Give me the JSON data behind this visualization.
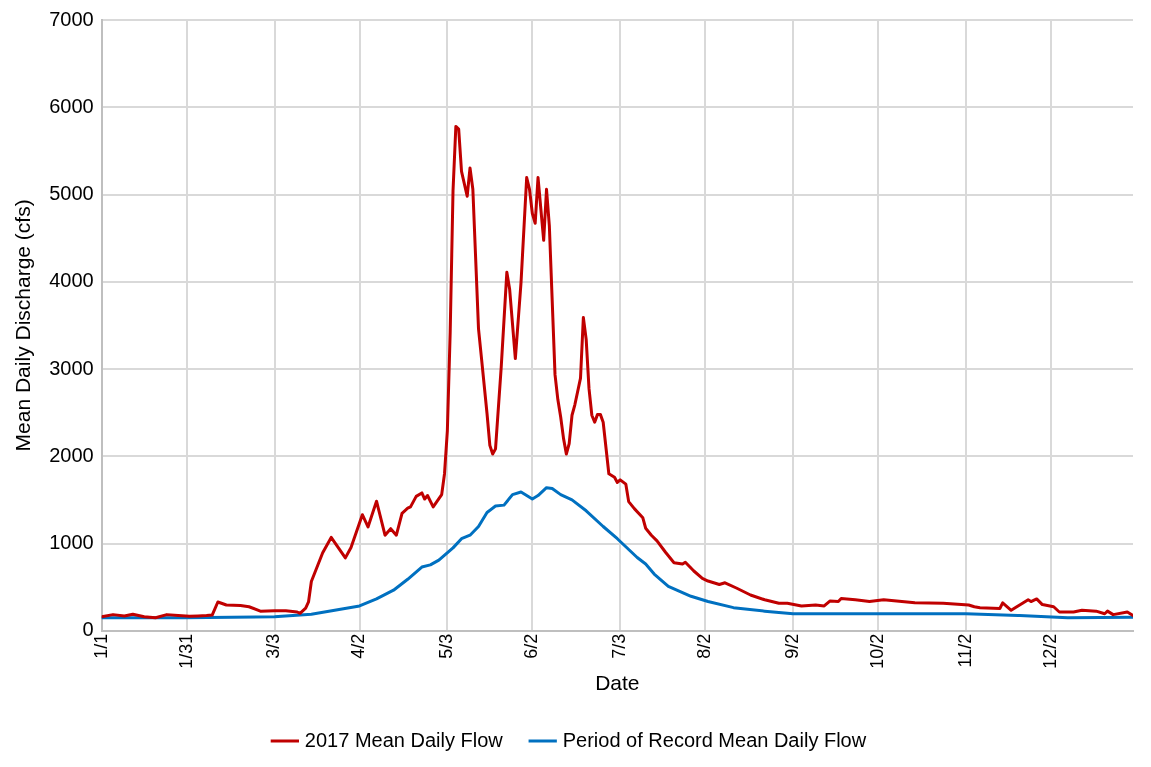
{
  "chart_data": {
    "type": "line",
    "xlabel": "Date",
    "ylabel": "Mean Daily Discharge (cfs)",
    "xlim": [
      "--01-01",
      "--12-31"
    ],
    "xticks": [
      {
        "value": "--01-01",
        "label": "1/1"
      },
      {
        "value": "--01-31",
        "label": "1/31"
      },
      {
        "value": "--03-03",
        "label": "3/3"
      },
      {
        "value": "--04-02",
        "label": "4/2"
      },
      {
        "value": "--05-03",
        "label": "5/3"
      },
      {
        "value": "--06-02",
        "label": "6/2"
      },
      {
        "value": "--07-03",
        "label": "7/3"
      },
      {
        "value": "--08-02",
        "label": "8/2"
      },
      {
        "value": "--09-02",
        "label": "9/2"
      },
      {
        "value": "--10-02",
        "label": "10/2"
      },
      {
        "value": "--11-02",
        "label": "11/2"
      },
      {
        "value": "--12-02",
        "label": "12/2"
      }
    ],
    "ylim": [
      0,
      7000
    ],
    "yticks": [
      0,
      1000,
      2000,
      3000,
      4000,
      5000,
      6000,
      7000
    ],
    "grid": true,
    "legend": "bottom",
    "series": [
      {
        "name": "2017 Mean Daily Flow",
        "color": "#c00000",
        "x": [
          "--01-01",
          "--01-05",
          "--01-09",
          "--01-12",
          "--01-16",
          "--01-20",
          "--01-24",
          "--01-28",
          "--02-01",
          "--02-04",
          "--02-07",
          "--02-09",
          "--02-11",
          "--02-14",
          "--02-19",
          "--02-22",
          "--02-26",
          "--03-03",
          "--03-07",
          "--03-11",
          "--03-12",
          "--03-14",
          "--03-15",
          "--03-16",
          "--03-20",
          "--03-23",
          "--03-28",
          "--03-30",
          "--04-03",
          "--04-05",
          "--04-08",
          "--04-11",
          "--04-13",
          "--04-15",
          "--04-17",
          "--04-19",
          "--04-20",
          "--04-22",
          "--04-24",
          "--04-25",
          "--04-26",
          "--04-28",
          "--05-01",
          "--05-02",
          "--05-03",
          "--05-04",
          "--05-05",
          "--05-06",
          "--05-07",
          "--05-08",
          "--05-10",
          "--05-11",
          "--05-12",
          "--05-14",
          "--05-15",
          "--05-17",
          "--05-18",
          "--05-19",
          "--05-20",
          "--05-22",
          "--05-24",
          "--05-25",
          "--05-27",
          "--05-29",
          "--05-31",
          "--06-01",
          "--06-02",
          "--06-03",
          "--06-04",
          "--06-06",
          "--06-07",
          "--06-08",
          "--06-10",
          "--06-11",
          "--06-12",
          "--06-13",
          "--06-14",
          "--06-15",
          "--06-16",
          "--06-17",
          "--06-19",
          "--06-20",
          "--06-21",
          "--06-22",
          "--06-23",
          "--06-24",
          "--06-25",
          "--06-26",
          "--06-27",
          "--06-29",
          "--07-01",
          "--07-02",
          "--07-03",
          "--07-05",
          "--07-06",
          "--07-08",
          "--07-11",
          "--07-12",
          "--07-14",
          "--07-16",
          "--07-19",
          "--07-22",
          "--07-25",
          "--07-26",
          "--07-29",
          "--08-01",
          "--08-03",
          "--08-07",
          "--08-09",
          "--08-13",
          "--08-18",
          "--08-23",
          "--08-28",
          "--08-31",
          "--09-05",
          "--09-10",
          "--09-13",
          "--09-15",
          "--09-18",
          "--09-19",
          "--09-24",
          "--09-29",
          "--10-04",
          "--10-15",
          "--10-25",
          "--11-03",
          "--11-05",
          "--11-07",
          "--11-14",
          "--11-15",
          "--11-18",
          "--11-21",
          "--11-24",
          "--11-25",
          "--11-27",
          "--11-29",
          "--12-03",
          "--12-05",
          "--12-10",
          "--12-13",
          "--12-18",
          "--12-21",
          "--12-22",
          "--12-24",
          "--12-29",
          "--12-31"
        ],
        "values": [
          160,
          185,
          170,
          190,
          160,
          150,
          185,
          175,
          165,
          170,
          175,
          180,
          330,
          295,
          290,
          275,
          225,
          230,
          230,
          215,
          200,
          260,
          330,
          565,
          895,
          1070,
          835,
          955,
          1330,
          1190,
          1485,
          1095,
          1170,
          1095,
          1345,
          1405,
          1420,
          1540,
          1580,
          1510,
          1550,
          1420,
          1560,
          1800,
          2290,
          3420,
          5040,
          5780,
          5750,
          5265,
          4980,
          5305,
          5060,
          3460,
          3140,
          2490,
          2125,
          2025,
          2085,
          3015,
          4110,
          3910,
          3120,
          3990,
          5195,
          5060,
          4780,
          4670,
          5195,
          4475,
          5060,
          4640,
          2935,
          2650,
          2450,
          2205,
          2025,
          2145,
          2470,
          2590,
          2895,
          3590,
          3340,
          2775,
          2470,
          2390,
          2480,
          2480,
          2390,
          1800,
          1760,
          1700,
          1730,
          1680,
          1480,
          1400,
          1295,
          1175,
          1095,
          1030,
          900,
          780,
          765,
          785,
          685,
          600,
          570,
          530,
          550,
          490,
          410,
          355,
          315,
          315,
          285,
          295,
          285,
          340,
          335,
          370,
          355,
          335,
          355,
          320,
          315,
          295,
          275,
          265,
          255,
          320,
          235,
          295,
          355,
          335,
          365,
          300,
          275,
          215,
          215,
          235,
          225,
          195,
          225,
          185,
          215,
          175
        ]
      },
      {
        "name": "Period of Record Mean Daily Flow",
        "color": "#0070c0",
        "x": [
          "--01-01",
          "--01-30",
          "--03-03",
          "--03-16",
          "--04-02",
          "--04-08",
          "--04-14",
          "--04-19",
          "--04-24",
          "--04-27",
          "--04-30",
          "--05-05",
          "--05-08",
          "--05-11",
          "--05-14",
          "--05-17",
          "--05-20",
          "--05-23",
          "--05-26",
          "--05-29",
          "--06-02",
          "--06-04",
          "--06-07",
          "--06-09",
          "--06-12",
          "--06-16",
          "--06-21",
          "--06-27",
          "--07-02",
          "--07-09",
          "--07-12",
          "--07-15",
          "--07-20",
          "--07-28",
          "--08-03",
          "--08-12",
          "--08-23",
          "--09-02",
          "--10-02",
          "--11-02",
          "--11-21",
          "--12-08",
          "--12-31"
        ],
        "values": [
          150,
          150,
          160,
          190,
          285,
          365,
          465,
          590,
          730,
          755,
          810,
          950,
          1055,
          1095,
          1195,
          1355,
          1430,
          1440,
          1560,
          1590,
          1510,
          1550,
          1640,
          1630,
          1560,
          1500,
          1375,
          1195,
          1055,
          840,
          765,
          650,
          510,
          395,
          335,
          265,
          225,
          195,
          195,
          195,
          175,
          150,
          155
        ]
      }
    ]
  }
}
